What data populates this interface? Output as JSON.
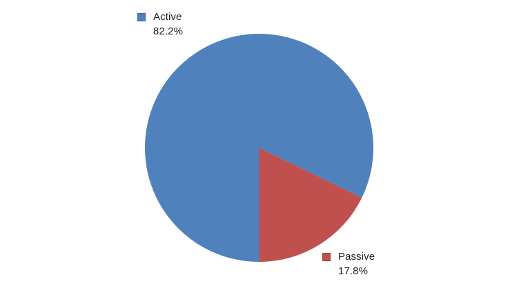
{
  "page": {
    "background": "#FFFFFF"
  },
  "chart_data": {
    "type": "pie",
    "title": "",
    "labels": [
      "Active",
      "Passive"
    ],
    "values": [
      82.2,
      17.8
    ],
    "unit": "%",
    "colors": [
      "#4F81BD",
      "#C0504D"
    ],
    "start_angle_deg": 180,
    "direction": "clockwise",
    "legend_position": "data-labels-outside",
    "background": "#FFFFFF",
    "label_text_color": "#1F1F1F",
    "slices": [
      {
        "label": "Active",
        "value": 82.2,
        "value_text": "82.2%",
        "color": "#4F81BD",
        "marker_border": "#3A6B9F"
      },
      {
        "label": "Passive",
        "value": 17.8,
        "value_text": "17.8%",
        "color": "#C0504D",
        "marker_border": "#9B403D"
      }
    ]
  }
}
